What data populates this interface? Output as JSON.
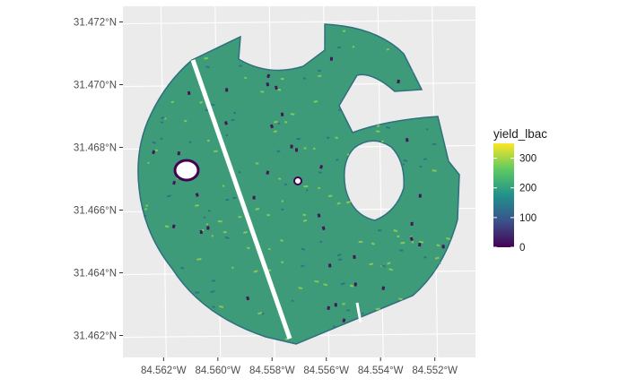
{
  "chart_data": {
    "type": "heatmap",
    "title": "",
    "xlabel": "",
    "ylabel": "",
    "x_ticks": [
      "84.562°W",
      "84.560°W",
      "84.558°W",
      "84.556°W",
      "84.554°W",
      "84.552°W"
    ],
    "x_tick_values": [
      -84.562,
      -84.56,
      -84.558,
      -84.556,
      -84.554,
      -84.552
    ],
    "y_ticks": [
      "31.462°N",
      "31.464°N",
      "31.466°N",
      "31.468°N",
      "31.470°N",
      "31.472°N"
    ],
    "y_tick_values": [
      31.462,
      31.464,
      31.466,
      31.468,
      31.47,
      31.472
    ],
    "xlim": [
      -84.5635,
      -84.5505
    ],
    "ylim": [
      31.4613,
      31.4725
    ],
    "grid": true,
    "legend": {
      "title": "yield_lbac",
      "position": "right",
      "labels": [
        "0",
        "100",
        "200",
        "300"
      ],
      "values": [
        0,
        100,
        200,
        300
      ],
      "range": [
        0,
        350
      ],
      "colors": [
        "#440154",
        "#3b528b",
        "#21918c",
        "#5ec962",
        "#fde725"
      ]
    },
    "colors": {
      "panel_background": "#ebebeb",
      "grid_line": "#ffffff",
      "field_base": "#3e9b7a",
      "field_high": "#8fd14f",
      "field_low": "#2a6f86",
      "low_yield": "#440154"
    },
    "field_summary": {
      "typical_yield": 180,
      "min_yield": 0,
      "max_yield": 350
    }
  }
}
